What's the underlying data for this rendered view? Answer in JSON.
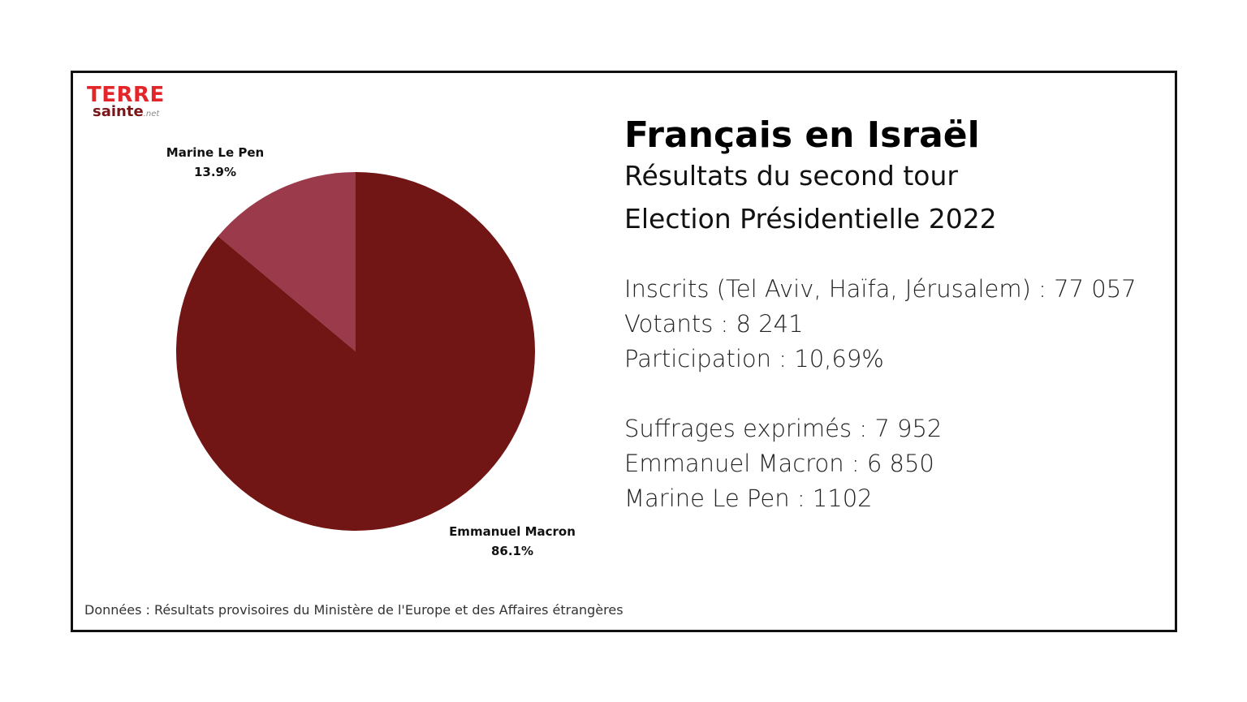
{
  "logo": {
    "top": "TERRE",
    "bottom": "sainte",
    "suffix": ".net"
  },
  "header": {
    "title": "Français en Israël",
    "subtitle_line1": "Résultats du second tour",
    "subtitle_line2": "Election Présidentielle 2022"
  },
  "stats": {
    "inscrits": "Inscrits (Tel Aviv, Haïfa, Jérusalem) : 77 057",
    "votants": "Votants : 8 241",
    "participation": "Participation : 10,69%",
    "suffrages": "Suffrages exprimés : 7 952",
    "macron": "Emmanuel Macron : 6 850",
    "lepen": "Marine Le Pen : 1102"
  },
  "source": "Données : Résultats provisoires du Ministère de l'Europe et des Affaires étrangères",
  "colors": {
    "macron": "#721515",
    "lepen": "#9b3a4b",
    "logo_red": "#e3262a"
  },
  "chart_data": {
    "type": "pie",
    "slices": [
      {
        "name": "Marine Le Pen",
        "value": 13.9,
        "label": "13.9%",
        "color": "#9b3a4b"
      },
      {
        "name": "Emmanuel Macron",
        "value": 86.1,
        "label": "86.1%",
        "color": "#721515"
      }
    ]
  }
}
